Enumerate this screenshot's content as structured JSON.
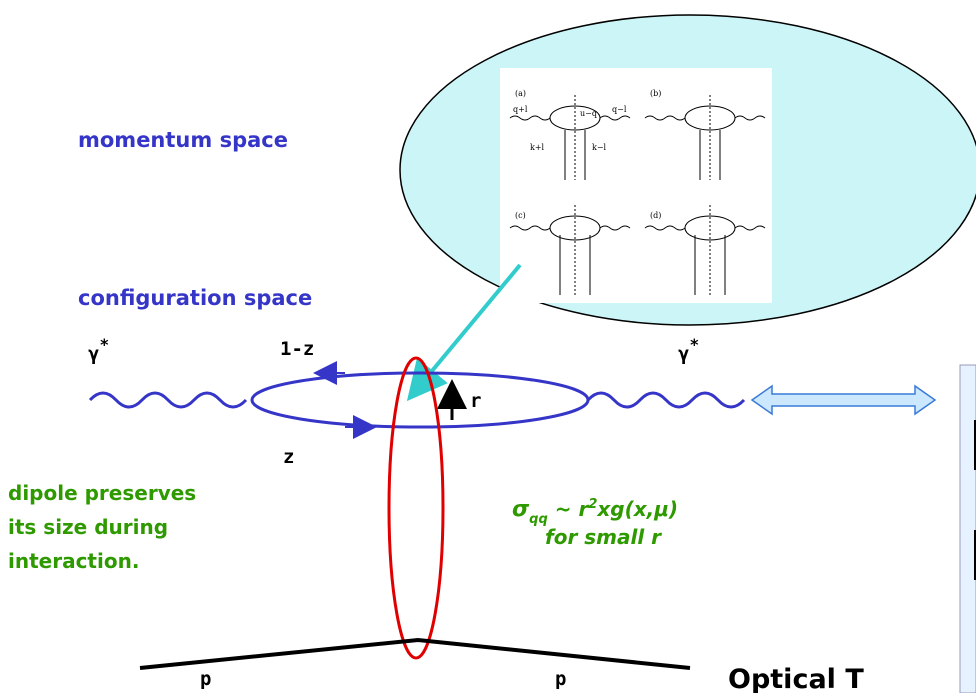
{
  "labels": {
    "momentum": "momentum space",
    "configuration": "configuration space",
    "gamma_left": "γ",
    "gamma_right": "γ",
    "star": "*",
    "one_minus_z": "1-z",
    "r": "r",
    "z": "z",
    "p_left": "p",
    "p_right": "p",
    "optical": "Optical T"
  },
  "dipole_note": [
    "dipole preserves",
    "its size during",
    "interaction."
  ],
  "formula": {
    "sigma": "σ",
    "sub": "qq",
    "tilde": " ~ r",
    "sup": "2",
    "rest": "xg(x,μ)",
    "line2": "for small r"
  },
  "inset": {
    "panels": [
      "(a)",
      "(b)",
      "(c)",
      "(d)"
    ],
    "momenta": [
      "q+l",
      "u−q",
      "q−l",
      "k+l",
      "k−l"
    ]
  }
}
